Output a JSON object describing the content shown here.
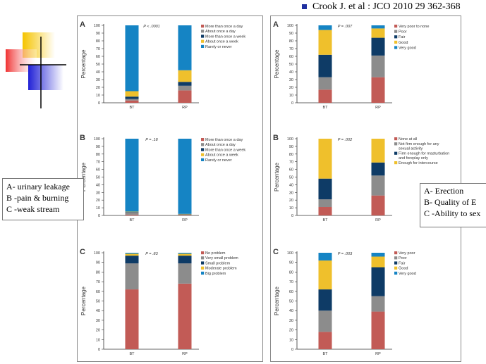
{
  "citation": "Crook J. et al : JCO 2010 29 362-368",
  "left_box_lines": [
    "A- urinary leakage",
    "B -pain & burning",
    "C -weak stream"
  ],
  "right_box_lines": [
    "A- Erection",
    "B- Quality of E",
    "C -Ability  to sex"
  ],
  "colors": {
    "red": "#c25b56",
    "gray": "#8c8c8c",
    "navy": "#0e3b66",
    "yellow": "#efc02c",
    "blue": "#1584c4",
    "logo_yellow": "#f5c400",
    "logo_red": "#f03030",
    "logo_blue": "#2121d6"
  },
  "chart_data": [
    {
      "type": "bar",
      "stacked": true,
      "panel_letter": "A",
      "p_value": "P < .0001",
      "categories": [
        "BT",
        "RP"
      ],
      "ylabel": "Percentage",
      "ylim": [
        0,
        100
      ],
      "yticks": [
        0,
        10,
        20,
        30,
        40,
        50,
        60,
        70,
        80,
        90,
        100
      ],
      "series": [
        {
          "name": "More than once a day",
          "color": "red",
          "values": [
            3,
            16
          ]
        },
        {
          "name": "About once a day",
          "color": "gray",
          "values": [
            2,
            6
          ]
        },
        {
          "name": "More than once a week",
          "color": "navy",
          "values": [
            3,
            5
          ]
        },
        {
          "name": "About once a week",
          "color": "yellow",
          "values": [
            7,
            15
          ]
        },
        {
          "name": "Rarely or never",
          "color": "blue",
          "values": [
            85,
            58
          ]
        }
      ]
    },
    {
      "type": "bar",
      "stacked": true,
      "panel_letter": "B",
      "p_value": "P = .18",
      "categories": [
        "BT",
        "RP"
      ],
      "ylabel": "Percentage",
      "ylim": [
        0,
        100
      ],
      "yticks": [
        0,
        10,
        20,
        30,
        40,
        50,
        60,
        70,
        80,
        90,
        100
      ],
      "series": [
        {
          "name": "More than once a day",
          "color": "red",
          "values": [
            1,
            0.5
          ]
        },
        {
          "name": "About once a day",
          "color": "gray",
          "values": [
            3,
            0.5
          ]
        },
        {
          "name": "More than once a week",
          "color": "navy",
          "values": [
            0.5,
            0.5
          ]
        },
        {
          "name": "About once a week",
          "color": "yellow",
          "values": [
            0.5,
            0.5
          ]
        },
        {
          "name": "Rarely or never",
          "color": "blue",
          "values": [
            95,
            98
          ]
        }
      ]
    },
    {
      "type": "bar",
      "stacked": true,
      "panel_letter": "C",
      "p_value": "P = .83",
      "categories": [
        "BT",
        "RP"
      ],
      "ylabel": "Percentage",
      "ylim": [
        0,
        100
      ],
      "yticks": [
        0,
        10,
        20,
        30,
        40,
        50,
        60,
        70,
        80,
        90,
        100
      ],
      "series": [
        {
          "name": "No problem",
          "color": "red",
          "values": [
            62,
            68
          ]
        },
        {
          "name": "Very small problem",
          "color": "gray",
          "values": [
            27,
            21
          ]
        },
        {
          "name": "Small problem",
          "color": "navy",
          "values": [
            8,
            8
          ]
        },
        {
          "name": "Moderate problem",
          "color": "yellow",
          "values": [
            2,
            2
          ]
        },
        {
          "name": "Big problem",
          "color": "blue",
          "values": [
            1,
            1
          ]
        }
      ]
    },
    {
      "type": "bar",
      "stacked": true,
      "panel_letter": "A",
      "p_value": "P = .007",
      "categories": [
        "BT",
        "RP"
      ],
      "ylabel": "Percentage",
      "ylim": [
        0,
        100
      ],
      "yticks": [
        0,
        10,
        20,
        30,
        40,
        50,
        60,
        70,
        80,
        90,
        100
      ],
      "series": [
        {
          "name": "Very poor to none",
          "color": "red",
          "values": [
            17,
            33
          ]
        },
        {
          "name": "Poor",
          "color": "gray",
          "values": [
            16,
            28
          ]
        },
        {
          "name": "Fair",
          "color": "navy",
          "values": [
            29,
            23
          ]
        },
        {
          "name": "Good",
          "color": "yellow",
          "values": [
            32,
            12
          ]
        },
        {
          "name": "Very good",
          "color": "blue",
          "values": [
            6,
            4
          ]
        }
      ]
    },
    {
      "type": "bar",
      "stacked": true,
      "panel_letter": "B",
      "p_value": "P = .002",
      "categories": [
        "BT",
        "RP"
      ],
      "ylabel": "Percentage",
      "ylim": [
        0,
        100
      ],
      "yticks": [
        0,
        10,
        20,
        30,
        40,
        50,
        60,
        70,
        80,
        90,
        100
      ],
      "series": [
        {
          "name": "None at all",
          "color": "red",
          "values": [
            11,
            26
          ]
        },
        {
          "name": "Not firm enough for any sexual activity",
          "color": "gray",
          "values": [
            10,
            26
          ]
        },
        {
          "name": "Firm enough for masturbation and foreplay only",
          "color": "navy",
          "values": [
            27,
            17
          ]
        },
        {
          "name": "Enough for intercourse",
          "color": "yellow",
          "values": [
            52,
            31
          ]
        }
      ]
    },
    {
      "type": "bar",
      "stacked": true,
      "panel_letter": "C",
      "p_value": "P = .003",
      "categories": [
        "BT",
        "RP"
      ],
      "ylabel": "Percentage",
      "ylim": [
        0,
        100
      ],
      "yticks": [
        0,
        10,
        20,
        30,
        40,
        50,
        60,
        70,
        80,
        90,
        100
      ],
      "series": [
        {
          "name": "Very poor",
          "color": "red",
          "values": [
            18,
            39
          ]
        },
        {
          "name": "Poor",
          "color": "gray",
          "values": [
            22,
            16
          ]
        },
        {
          "name": "Fair",
          "color": "navy",
          "values": [
            22,
            30
          ]
        },
        {
          "name": "Good",
          "color": "yellow",
          "values": [
            30,
            11
          ]
        },
        {
          "name": "Very good",
          "color": "blue",
          "values": [
            8,
            4
          ]
        }
      ]
    }
  ]
}
